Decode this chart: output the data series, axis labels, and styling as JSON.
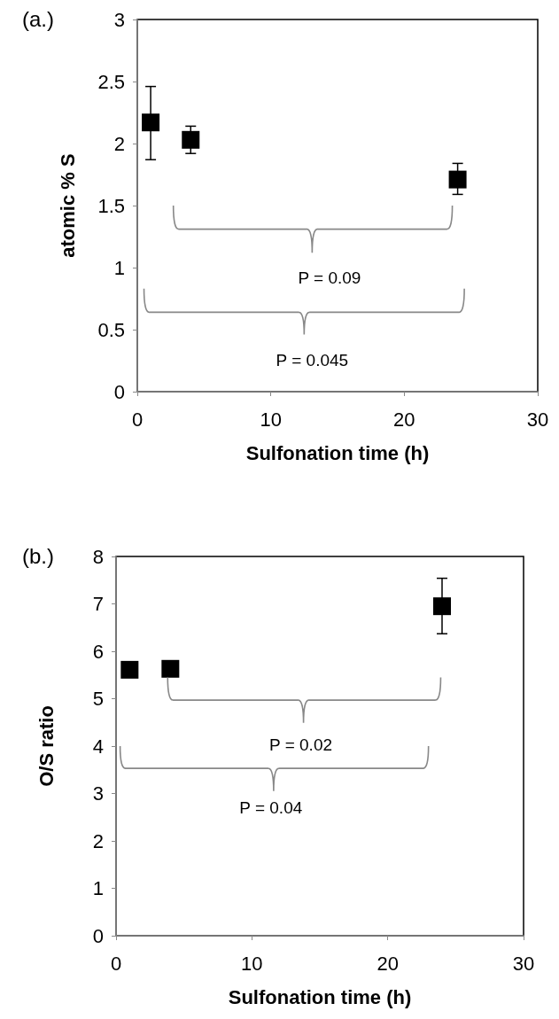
{
  "chart_data": [
    {
      "type": "scatter",
      "title": "(a.)",
      "xlabel": "Sulfonation time (h)",
      "ylabel": "atomic % S",
      "x": [
        1,
        4,
        24
      ],
      "values": [
        2.17,
        2.03,
        1.71
      ],
      "errors": [
        [
          1.87,
          2.46
        ],
        [
          1.92,
          2.14
        ],
        [
          1.59,
          1.84
        ]
      ],
      "color": "#000000",
      "marker": "square",
      "grid": false,
      "xlim": [
        0,
        30
      ],
      "xticks": [
        0,
        10,
        20,
        30
      ],
      "ylim": [
        0,
        3
      ],
      "yticks": [
        0,
        0.5,
        1,
        1.5,
        2,
        2.5,
        3
      ],
      "annotations": [
        "P = 0.09",
        "P = 0.045"
      ]
    },
    {
      "type": "scatter",
      "title": "(b.)",
      "xlabel": "Sulfonation time (h)",
      "ylabel": "O/S ratio",
      "x": [
        1,
        4,
        24
      ],
      "values": [
        5.61,
        5.63,
        6.95
      ],
      "errors": [
        null,
        null,
        [
          6.37,
          7.54
        ]
      ],
      "color": "#000000",
      "marker": "square",
      "grid": false,
      "xlim": [
        0,
        30
      ],
      "xticks": [
        0,
        10,
        20,
        30
      ],
      "ylim": [
        0,
        8
      ],
      "yticks": [
        0,
        1,
        2,
        3,
        4,
        5,
        6,
        7,
        8
      ],
      "annotations": [
        "P = 0.02",
        "P = 0.04"
      ]
    }
  ]
}
